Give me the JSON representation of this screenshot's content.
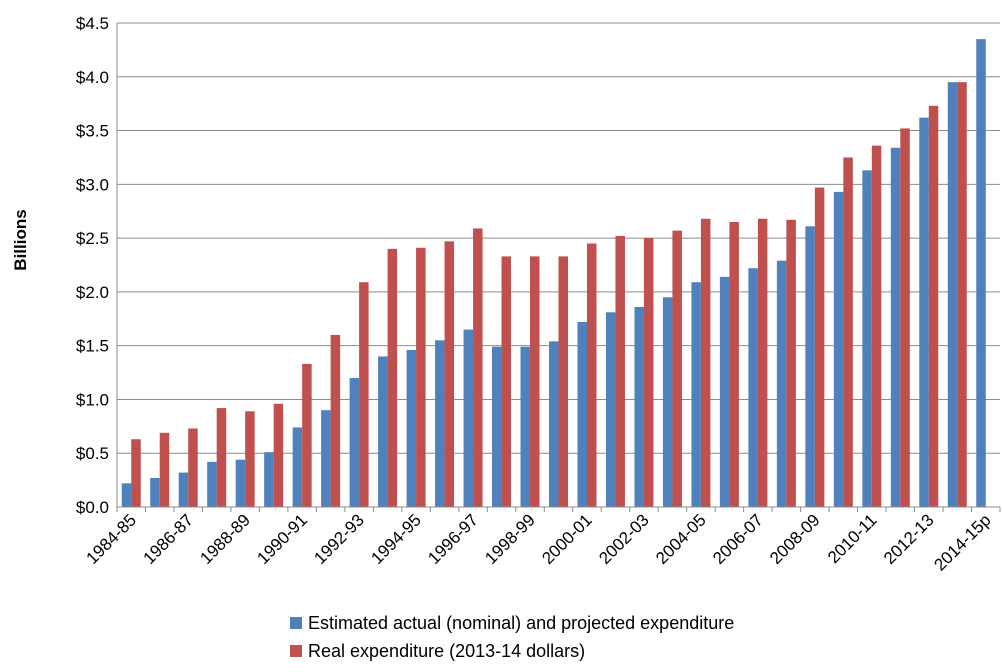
{
  "chart_data": {
    "type": "bar",
    "ylabel": "Billions",
    "xlabel": "",
    "title": "",
    "ylim": [
      0,
      4.5
    ],
    "y_tick_step": 0.5,
    "y_tick_labels": [
      "$0.0",
      "$0.5",
      "$1.0",
      "$1.5",
      "$2.0",
      "$2.5",
      "$3.0",
      "$3.5",
      "$4.0",
      "$4.5"
    ],
    "categories": [
      "1984-85",
      "1985-86",
      "1986-87",
      "1987-88",
      "1988-89",
      "1989-90",
      "1990-91",
      "1991-92",
      "1992-93",
      "1993-94",
      "1994-95",
      "1995-96",
      "1996-97",
      "1997-98",
      "1998-99",
      "1999-00",
      "2000-01",
      "2001-02",
      "2002-03",
      "2003-04",
      "2004-05",
      "2005-06",
      "2006-07",
      "2007-08",
      "2008-09",
      "2009-10",
      "2010-11",
      "2011-12",
      "2012-13",
      "2013-14",
      "2014-15p"
    ],
    "shown_x_tick_labels": [
      "1984-85",
      "1986-87",
      "1988-89",
      "1990-91",
      "1992-93",
      "1994-95",
      "1996-97",
      "1998-99",
      "2000-01",
      "2002-03",
      "2004-05",
      "2006-07",
      "2008-09",
      "2010-11",
      "2012-13",
      "2014-15p"
    ],
    "grid": "horizontal",
    "legend_position": "bottom",
    "series": [
      {
        "name": "Estimated actual (nominal) and projected expenditure",
        "color": "#4f81bd",
        "values": [
          0.22,
          0.27,
          0.32,
          0.42,
          0.44,
          0.51,
          0.74,
          0.9,
          1.2,
          1.4,
          1.46,
          1.55,
          1.65,
          1.49,
          1.49,
          1.54,
          1.72,
          1.81,
          1.86,
          1.95,
          2.09,
          2.14,
          2.22,
          2.29,
          2.61,
          2.93,
          3.13,
          3.34,
          3.62,
          3.95,
          4.35
        ]
      },
      {
        "name": "Real expenditure (2013-14 dollars)",
        "color": "#c0504d",
        "values": [
          0.63,
          0.69,
          0.73,
          0.92,
          0.89,
          0.96,
          1.33,
          1.6,
          2.09,
          2.4,
          2.41,
          2.47,
          2.59,
          2.33,
          2.33,
          2.33,
          2.45,
          2.52,
          2.5,
          2.57,
          2.68,
          2.65,
          2.68,
          2.67,
          2.97,
          3.25,
          3.36,
          3.52,
          3.73,
          3.95,
          null
        ]
      }
    ]
  }
}
